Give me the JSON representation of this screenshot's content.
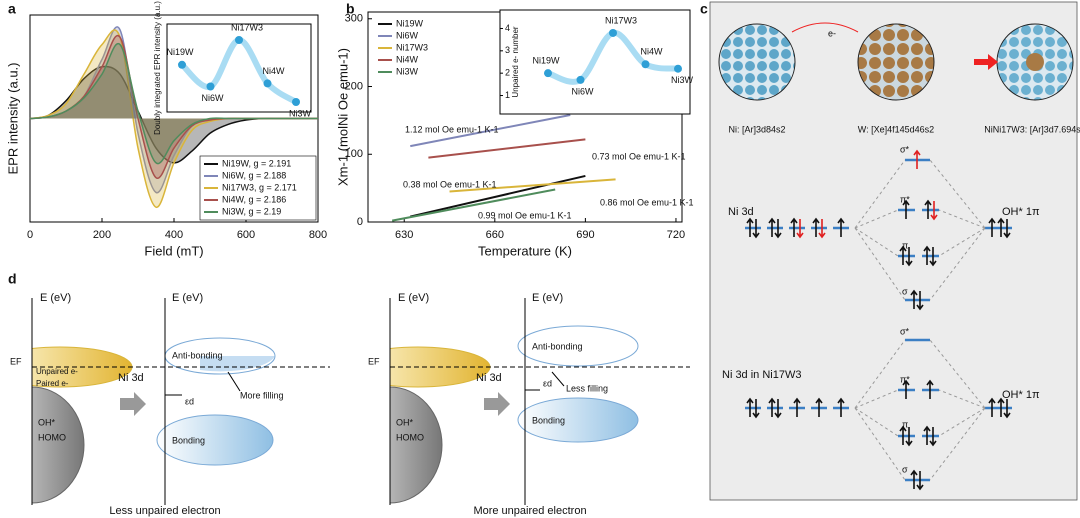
{
  "panels": {
    "a": "a",
    "b": "b",
    "c": "c",
    "d": "d"
  },
  "chart_data": [
    {
      "type": "area",
      "xlabel": "Field (mT)",
      "ylabel": "EPR intensity (a.u.)",
      "x": [
        0,
        50,
        100,
        150,
        200,
        250,
        300,
        350,
        400,
        450,
        500,
        550,
        600,
        650,
        700,
        750,
        800
      ],
      "xlim": [
        0,
        800
      ],
      "xticks": [
        0,
        200,
        400,
        600,
        800
      ],
      "ylim": [
        -0.7,
        0.7
      ],
      "legend": "lower right",
      "series": [
        {
          "name": "Ni19W, g = 2.191",
          "color": "#111111",
          "values": [
            0,
            0.02,
            0.12,
            0.27,
            0.35,
            0.3,
            0.05,
            -0.2,
            -0.3,
            -0.22,
            -0.1,
            -0.04,
            -0.01,
            0,
            0,
            0,
            0
          ]
        },
        {
          "name": "Ni6W, g = 2.188",
          "color": "#7f86b8",
          "values": [
            0,
            0.01,
            0.05,
            0.15,
            0.4,
            0.6,
            -0.1,
            -0.5,
            -0.25,
            -0.05,
            -0.01,
            0,
            0,
            0,
            0,
            0,
            0
          ]
        },
        {
          "name": "Ni17W3, g = 2.171",
          "color": "#d9b53a",
          "values": [
            0,
            0.02,
            0.1,
            0.3,
            0.5,
            0.55,
            -0.2,
            -0.6,
            -0.3,
            -0.08,
            -0.02,
            0,
            0,
            0,
            0,
            0,
            0
          ]
        },
        {
          "name": "Ni4W, g = 2.186",
          "color": "#a8504c",
          "values": [
            0,
            0.01,
            0.05,
            0.15,
            0.35,
            0.55,
            0,
            -0.4,
            -0.2,
            -0.05,
            -0.01,
            0,
            0,
            0,
            0,
            0,
            0
          ]
        },
        {
          "name": "Ni3W, g = 2.19",
          "color": "#4f8c5c",
          "values": [
            0,
            0.01,
            0.05,
            0.14,
            0.3,
            0.5,
            0.05,
            -0.3,
            -0.15,
            -0.04,
            0,
            0,
            0,
            0,
            0,
            0,
            0
          ]
        }
      ]
    },
    {
      "type": "line",
      "xlabel": "Temperature (K)",
      "ylabel": "Xm-1 (molNi Oe emu-1)",
      "xlim": [
        618,
        722
      ],
      "xticks": [
        630,
        660,
        690,
        720
      ],
      "ylim": [
        0,
        310
      ],
      "yticks": [
        0,
        100,
        200,
        300
      ],
      "legend": "upper left",
      "series": [
        {
          "name": "Ni19W",
          "color": "#111111",
          "x": [
            632,
            690
          ],
          "values": [
            8,
            68
          ]
        },
        {
          "name": "Ni6W",
          "color": "#7f86b8",
          "x": [
            632,
            685
          ],
          "values": [
            112,
            158
          ]
        },
        {
          "name": "Ni17W3",
          "color": "#d9b53a",
          "x": [
            645,
            700
          ],
          "values": [
            45,
            63
          ]
        },
        {
          "name": "Ni4W",
          "color": "#a8504c",
          "x": [
            638,
            690
          ],
          "values": [
            95,
            122
          ]
        },
        {
          "name": "Ni3W",
          "color": "#4f8c5c",
          "x": [
            626,
            680
          ],
          "values": [
            2,
            48
          ]
        }
      ],
      "annotations": [
        {
          "text": "1.12 mol Oe emu-1 K-1",
          "color": "#6f78a8"
        },
        {
          "text": "0.73 mol Oe emu-1 K-1",
          "color": "#a8504c"
        },
        {
          "text": "0.38 mol Oe emu-1 K-1",
          "color": "#c9a22a"
        },
        {
          "text": "0.86 mol Oe emu-1 K-1",
          "color": "#4f8c5c"
        },
        {
          "text": "0.99 mol Oe emu-1 K-1",
          "color": "#111111"
        }
      ]
    },
    {
      "type": "line",
      "ylabel": "Doubly integrated EPR intensity (a.u.)",
      "categories": [
        "Ni19W",
        "Ni6W",
        "Ni17W3",
        "Ni4W",
        "Ni3W"
      ],
      "ylim": [
        0,
        1
      ],
      "series": [
        {
          "color": "#2e9fd6",
          "values": [
            0.6,
            0.25,
            1.0,
            0.3,
            0
          ]
        }
      ]
    },
    {
      "type": "line",
      "ylabel": "Unpaired e- number",
      "categories": [
        "Ni19W",
        "Ni6W",
        "Ni17W3",
        "Ni4W",
        "Ni3W"
      ],
      "ylim": [
        0.8,
        4.2
      ],
      "yticks": [
        1,
        2,
        3,
        4
      ],
      "series": [
        {
          "color": "#2e9fd6",
          "values": [
            2.0,
            1.7,
            3.8,
            2.4,
            2.2
          ]
        }
      ]
    }
  ],
  "diagram_c": {
    "atoms": [
      "Ni: [Ar]3d84s2",
      "W: [Xe]4f145d46s2",
      "NiNi17W3: [Ar]3d7.694s2"
    ],
    "electron": "e-",
    "top": {
      "left": "Ni 3d",
      "right": "OH* 1π",
      "levels": [
        "σ*",
        "π*",
        "π",
        "σ"
      ]
    },
    "bottom": {
      "left": "Ni 3d in Ni17W3",
      "right": "OH* 1π",
      "levels": [
        "σ*",
        "π*",
        "π",
        "σ"
      ]
    }
  },
  "diagram_d": {
    "axis_label": [
      "E (eV)",
      "E (eV)",
      "E (eV)",
      "E (eV)"
    ],
    "fermi": [
      "EF",
      "EF"
    ],
    "unpaired": "Unpaired e-",
    "paired": "Paired e-",
    "ni3d": [
      "Ni 3d",
      "Ni 3d"
    ],
    "homo": [
      [
        "OH*",
        "HOMO"
      ],
      [
        "OH*",
        "HOMO"
      ]
    ],
    "antibonding": [
      "Anti-bonding",
      "Anti-bonding"
    ],
    "bonding": [
      "Bonding",
      "Bonding"
    ],
    "more_filling": "More filling",
    "less_filling": "Less filling",
    "eps": [
      "εd",
      "εd"
    ],
    "captions": [
      "Less unpaired electron",
      "More unpaired electron"
    ]
  }
}
